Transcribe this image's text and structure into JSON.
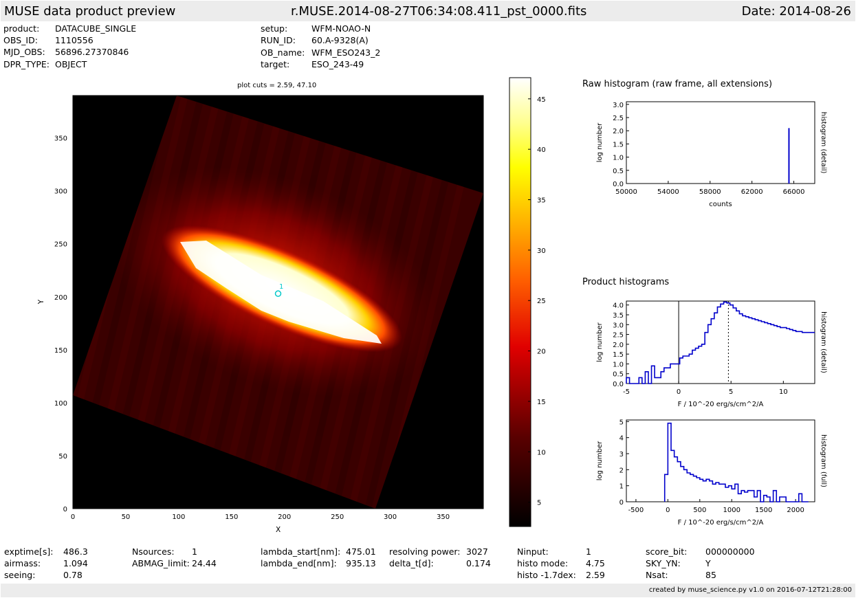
{
  "header": {
    "app_title": "MUSE data product preview",
    "filename": "r.MUSE.2014-08-27T06:34:08.411_pst_0000.fits",
    "date": "Date: 2014-08-26"
  },
  "meta_left": [
    {
      "label": "product:",
      "value": "DATACUBE_SINGLE"
    },
    {
      "label": "OBS_ID:",
      "value": "1110556"
    },
    {
      "label": "MJD_OBS:",
      "value": "56896.27370846"
    },
    {
      "label": "DPR_TYPE:",
      "value": "OBJECT"
    }
  ],
  "meta_right": [
    {
      "label": "setup:",
      "value": "WFM-NOAO-N"
    },
    {
      "label": "RUN_ID:",
      "value": "60.A-9328(A)"
    },
    {
      "label": "OB_name:",
      "value": "WFM_ESO243_2"
    },
    {
      "label": "target:",
      "value": "ESO_243-49"
    }
  ],
  "image_panel": {
    "plot_cuts": "plot cuts = 2.59, 47.10",
    "xlabel": "X",
    "ylabel": "Y",
    "source_label": "1"
  },
  "raw_hist_title": "Raw histogram (raw frame, all extensions)",
  "product_hist_title": "Product histograms",
  "stats": [
    {
      "label": "exptime[s]:",
      "value": "486.3"
    },
    {
      "label": "airmass:",
      "value": "1.094"
    },
    {
      "label": "seeing:",
      "value": "0.78"
    },
    {
      "label": "Nsources:",
      "value": "1"
    },
    {
      "label": "ABMAG_limit:",
      "value": "24.44"
    },
    {
      "label": "lambda_start[nm]:",
      "value": "475.01"
    },
    {
      "label": "lambda_end[nm]:",
      "value": "935.13"
    },
    {
      "label": "resolving power:",
      "value": "3027"
    },
    {
      "label": "delta_t[d]:",
      "value": "0.174"
    },
    {
      "label": "Ninput:",
      "value": "1"
    },
    {
      "label": "histo mode:",
      "value": "4.75"
    },
    {
      "label": "histo -1.7dex:",
      "value": "2.59"
    },
    {
      "label": "score_bit:",
      "value": "000000000"
    },
    {
      "label": "SKY_YN:",
      "value": "Y"
    },
    {
      "label": "Nsat:",
      "value": "85"
    }
  ],
  "footer": "created by muse_science.py v1.0 on 2016-07-12T21:28:00",
  "colors": {
    "hist_line": "#0000cc",
    "marker": "#00c8c8",
    "bar_bg": "#ececec"
  },
  "chart_data": [
    {
      "type": "heatmap",
      "title": "plot cuts = 2.59, 47.10",
      "xlabel": "X",
      "ylabel": "Y",
      "xlim": [
        0,
        388
      ],
      "ylim": [
        0,
        390
      ],
      "x_ticks": [
        0,
        50,
        100,
        150,
        200,
        250,
        300,
        350
      ],
      "y_ticks": [
        0,
        50,
        100,
        150,
        200,
        250,
        300,
        350
      ],
      "colorbar": {
        "range": [
          2.59,
          47.1
        ],
        "ticks": [
          5,
          10,
          15,
          20,
          25,
          30,
          35,
          40,
          45
        ]
      },
      "source_marker": {
        "x": 194,
        "y": 203,
        "label": "1"
      }
    },
    {
      "type": "line",
      "title": "Raw histogram (raw frame, all extensions)",
      "xlabel": "counts",
      "ylabel": "log number",
      "y2label": "histogram (detail)",
      "xlim": [
        50000,
        68000
      ],
      "ylim": [
        0,
        3.1
      ],
      "x_ticks": [
        50000,
        54000,
        58000,
        62000,
        66000
      ],
      "y_ticks": [
        0.0,
        0.5,
        1.0,
        1.5,
        2.0,
        2.5,
        3.0
      ],
      "spike": {
        "x": 65535,
        "y": 2.1
      }
    },
    {
      "type": "line",
      "xlabel": "F / 10^-20 erg/s/cm^2/A",
      "ylabel": "log number",
      "y2label": "histogram (detail)",
      "xlim": [
        -5,
        13
      ],
      "ylim": [
        0,
        4.2
      ],
      "x_ticks": [
        -5,
        0,
        5,
        10
      ],
      "y_ticks": [
        0.0,
        0.5,
        1.0,
        1.5,
        2.0,
        2.5,
        3.0,
        3.5,
        4.0
      ],
      "zero_line": 0,
      "mode_line": 4.75,
      "series": [
        {
          "x": [
            -5,
            -4.7,
            -4.4,
            -4.1,
            -3.8,
            -3.5,
            -3.2,
            -2.9,
            -2.6,
            -2.3,
            -2.0,
            -1.7,
            -1.4,
            -1.1,
            -0.8,
            -0.5,
            -0.2,
            0.1,
            0.4,
            0.7,
            1.0,
            1.3,
            1.6,
            1.9,
            2.2,
            2.5,
            2.8,
            3.1,
            3.4,
            3.7,
            4.0,
            4.3,
            4.6,
            4.9,
            5.2,
            5.5,
            5.8,
            6.1,
            6.4,
            6.7,
            7.0,
            7.3,
            7.6,
            7.9,
            8.2,
            8.5,
            8.8,
            9.1,
            9.4,
            9.7,
            10.0,
            10.3,
            10.6,
            10.9,
            11.2,
            11.5,
            11.8,
            12.1,
            12.4,
            12.7
          ],
          "y": [
            0.3,
            0,
            0,
            0,
            0.3,
            0,
            0.6,
            0,
            0.9,
            0.3,
            0.3,
            0.6,
            0.8,
            0.8,
            1.0,
            1.0,
            1.0,
            1.3,
            1.4,
            1.4,
            1.5,
            1.7,
            1.8,
            1.9,
            2.0,
            2.6,
            3.0,
            3.3,
            3.6,
            3.9,
            4.05,
            4.15,
            4.1,
            4.0,
            3.85,
            3.7,
            3.55,
            3.45,
            3.4,
            3.35,
            3.3,
            3.25,
            3.2,
            3.15,
            3.1,
            3.05,
            3.0,
            2.95,
            2.9,
            2.85,
            2.85,
            2.8,
            2.75,
            2.7,
            2.65,
            2.65,
            2.6,
            2.6,
            2.6,
            2.6
          ]
        }
      ]
    },
    {
      "type": "line",
      "xlabel": "F / 10^-20 erg/s/cm^2/A",
      "ylabel": "log number",
      "y2label": "histogram (full)",
      "xlim": [
        -650,
        2300
      ],
      "ylim": [
        0,
        5.1
      ],
      "x_ticks": [
        -500,
        0,
        500,
        1000,
        1500,
        2000
      ],
      "y_ticks": [
        0,
        1,
        2,
        3,
        4,
        5
      ],
      "series": [
        {
          "x": [
            -50,
            0,
            50,
            100,
            150,
            200,
            250,
            300,
            350,
            400,
            450,
            500,
            550,
            600,
            650,
            700,
            750,
            800,
            850,
            900,
            950,
            1000,
            1050,
            1100,
            1150,
            1200,
            1250,
            1300,
            1350,
            1400,
            1450,
            1500,
            1550,
            1600,
            1650,
            1700,
            1750,
            1800,
            1850,
            1900,
            1950,
            2000,
            2050,
            2100,
            2150
          ],
          "y": [
            1.7,
            4.9,
            3.2,
            2.8,
            2.5,
            2.2,
            2.0,
            1.8,
            1.7,
            1.6,
            1.5,
            1.4,
            1.3,
            1.4,
            1.3,
            1.1,
            1.2,
            1.1,
            1.1,
            0.9,
            1.0,
            0.8,
            1.1,
            0.5,
            0.7,
            0.6,
            0.7,
            0.7,
            0.3,
            0.7,
            0,
            0.4,
            0.3,
            0,
            0.7,
            0,
            0.3,
            0.3,
            0,
            0,
            0,
            0,
            0.5,
            0,
            0
          ]
        }
      ]
    }
  ]
}
